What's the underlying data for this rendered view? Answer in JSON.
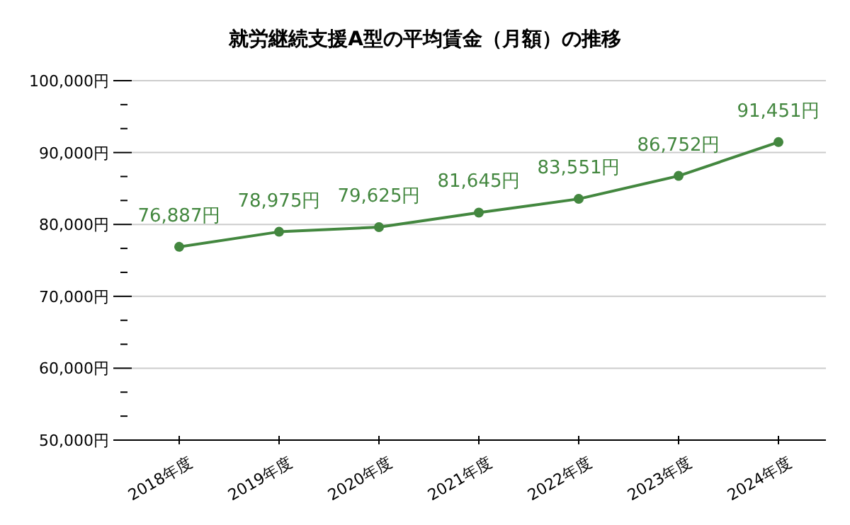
{
  "chart_data": {
    "type": "line",
    "title": "就労継続支援A型の平均賃金（月額）の推移",
    "categories": [
      "2018年度",
      "2019年度",
      "2020年度",
      "2021年度",
      "2022年度",
      "2023年度",
      "2024年度"
    ],
    "series": [
      {
        "color": "#43873f",
        "values": [
          76887,
          78975,
          79625,
          81645,
          83551,
          86752,
          91451
        ]
      }
    ],
    "value_labels": [
      "76,887円",
      "78,975円",
      "79,625円",
      "81,645円",
      "83,551円",
      "86,752円",
      "91,451円"
    ],
    "ylim": [
      50000,
      100000
    ],
    "yticks": [
      {
        "value": 50000,
        "label": "50,000円"
      },
      {
        "value": 53333,
        "label": null
      },
      {
        "value": 56667,
        "label": null
      },
      {
        "value": 60000,
        "label": "60,000円"
      },
      {
        "value": 63333,
        "label": null
      },
      {
        "value": 66667,
        "label": null
      },
      {
        "value": 70000,
        "label": "70,000円"
      },
      {
        "value": 73333,
        "label": null
      },
      {
        "value": 76667,
        "label": null
      },
      {
        "value": 80000,
        "label": "80,000円"
      },
      {
        "value": 83333,
        "label": null
      },
      {
        "value": 86667,
        "label": null
      },
      {
        "value": 90000,
        "label": "90,000円"
      },
      {
        "value": 93333,
        "label": null
      },
      {
        "value": 96667,
        "label": null
      },
      {
        "value": 100000,
        "label": "100,000円"
      }
    ],
    "grid": "y",
    "marker": "circle",
    "line_style": "solid"
  }
}
